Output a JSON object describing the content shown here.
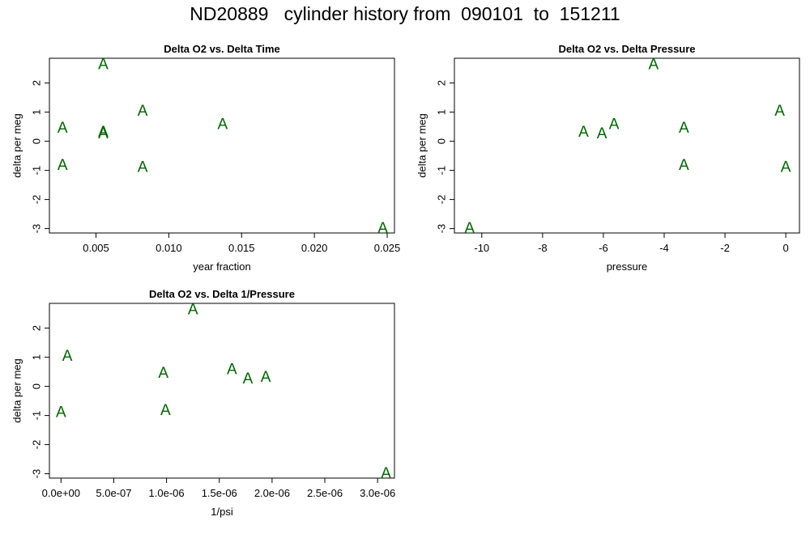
{
  "main_title": "ND20889   cylinder history from  090101  to  151211",
  "colors": {
    "point": "#006400",
    "axis": "#000000",
    "background": "#ffffff"
  },
  "chart_data": [
    {
      "type": "scatter",
      "title": "Delta O2 vs. Delta Time",
      "xlabel": "year fraction",
      "ylabel": "delta per meg",
      "marker": "A",
      "xlim": [
        0.0018,
        0.0255
      ],
      "ylim": [
        -3.15,
        2.85
      ],
      "xticks": [
        {
          "value": 0.005,
          "label": "0.005"
        },
        {
          "value": 0.01,
          "label": "0.010"
        },
        {
          "value": 0.015,
          "label": "0.015"
        },
        {
          "value": 0.02,
          "label": "0.020"
        },
        {
          "value": 0.025,
          "label": "0.025"
        }
      ],
      "yticks": [
        {
          "value": -3,
          "label": "-3"
        },
        {
          "value": -2,
          "label": "-2"
        },
        {
          "value": -1,
          "label": "-1"
        },
        {
          "value": 0,
          "label": "0"
        },
        {
          "value": 1,
          "label": "1"
        },
        {
          "value": 2,
          "label": "2"
        }
      ],
      "points": [
        {
          "x": 0.0027,
          "y": 0.49
        },
        {
          "x": 0.0027,
          "y": -0.79
        },
        {
          "x": 0.0055,
          "y": 2.67
        },
        {
          "x": 0.0055,
          "y": 0.35
        },
        {
          "x": 0.0055,
          "y": 0.3
        },
        {
          "x": 0.0082,
          "y": 1.07
        },
        {
          "x": 0.0082,
          "y": -0.86
        },
        {
          "x": 0.0137,
          "y": 0.61
        },
        {
          "x": 0.0247,
          "y": -2.95
        }
      ]
    },
    {
      "type": "scatter",
      "title": "Delta O2 vs. Delta Pressure",
      "xlabel": "pressure",
      "ylabel": "delta per meg",
      "marker": "A",
      "xlim": [
        -10.9,
        0.45
      ],
      "ylim": [
        -3.15,
        2.85
      ],
      "xticks": [
        {
          "value": -10,
          "label": "-10"
        },
        {
          "value": -8,
          "label": "-8"
        },
        {
          "value": -6,
          "label": "-6"
        },
        {
          "value": -4,
          "label": "-4"
        },
        {
          "value": -2,
          "label": "-2"
        },
        {
          "value": 0,
          "label": "0"
        }
      ],
      "yticks": [
        {
          "value": -3,
          "label": "-3"
        },
        {
          "value": -2,
          "label": "-2"
        },
        {
          "value": -1,
          "label": "-1"
        },
        {
          "value": 0,
          "label": "0"
        },
        {
          "value": 1,
          "label": "1"
        },
        {
          "value": 2,
          "label": "2"
        }
      ],
      "points": [
        {
          "x": -10.4,
          "y": -2.95
        },
        {
          "x": -6.65,
          "y": 0.35
        },
        {
          "x": -6.05,
          "y": 0.3
        },
        {
          "x": -5.65,
          "y": 0.61
        },
        {
          "x": -4.35,
          "y": 2.67
        },
        {
          "x": -3.35,
          "y": 0.49
        },
        {
          "x": -3.35,
          "y": -0.79
        },
        {
          "x": -0.2,
          "y": 1.07
        },
        {
          "x": 0.0,
          "y": -0.86
        }
      ]
    },
    {
      "type": "scatter",
      "title": "Delta O2 vs. Delta 1/Pressure",
      "xlabel": "1/psi",
      "ylabel": "delta per meg",
      "marker": "A",
      "xlim": [
        -1.1e-07,
        3.16e-06
      ],
      "ylim": [
        -3.15,
        2.85
      ],
      "xticks": [
        {
          "value": 0,
          "label": "0.0e+00"
        },
        {
          "value": 5e-07,
          "label": "5.0e-07"
        },
        {
          "value": 1e-06,
          "label": "1.0e-06"
        },
        {
          "value": 1.5e-06,
          "label": "1.5e-06"
        },
        {
          "value": 2e-06,
          "label": "2.0e-06"
        },
        {
          "value": 2.5e-06,
          "label": "2.5e-06"
        },
        {
          "value": 3e-06,
          "label": "3.0e-06"
        }
      ],
      "yticks": [
        {
          "value": -3,
          "label": "-3"
        },
        {
          "value": -2,
          "label": "-2"
        },
        {
          "value": -1,
          "label": "-1"
        },
        {
          "value": 0,
          "label": "0"
        },
        {
          "value": 1,
          "label": "1"
        },
        {
          "value": 2,
          "label": "2"
        }
      ],
      "points": [
        {
          "x": 0.0,
          "y": -0.86
        },
        {
          "x": 6e-08,
          "y": 1.07
        },
        {
          "x": 9.7e-07,
          "y": 0.49
        },
        {
          "x": 9.9e-07,
          "y": -0.79
        },
        {
          "x": 1.25e-06,
          "y": 2.67
        },
        {
          "x": 1.62e-06,
          "y": 0.61
        },
        {
          "x": 1.77e-06,
          "y": 0.3
        },
        {
          "x": 1.94e-06,
          "y": 0.35
        },
        {
          "x": 3.08e-06,
          "y": -2.95
        }
      ]
    }
  ]
}
